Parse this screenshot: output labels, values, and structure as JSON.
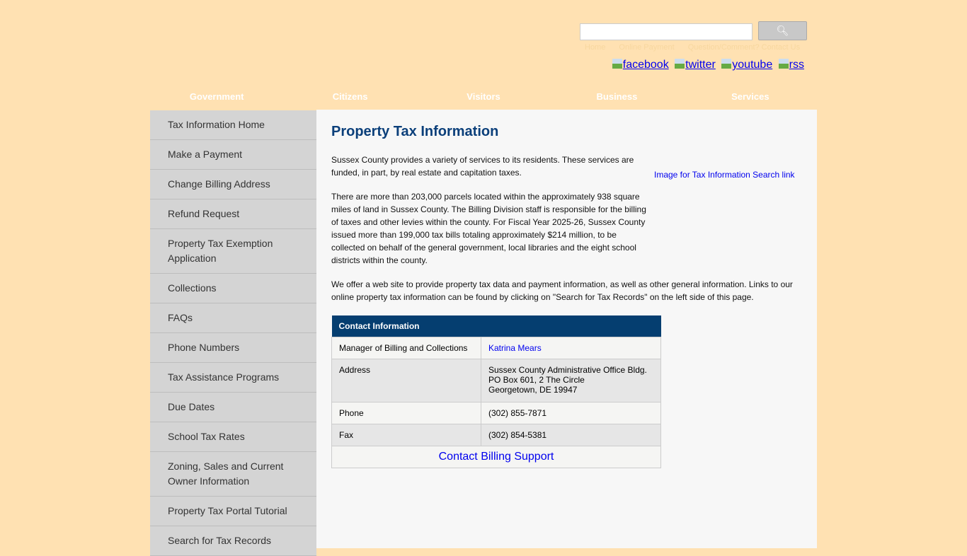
{
  "header": {
    "search_placeholder": "",
    "toplinks": [
      "Home",
      "Online Payment",
      "Question/Comment? Contact Us"
    ],
    "social": [
      "facebook",
      "twitter",
      "youtube",
      "rss"
    ]
  },
  "nav": [
    "Government",
    "Citizens",
    "Visitors",
    "Business",
    "Services"
  ],
  "sidebar": [
    "Tax Information Home",
    "Make a Payment",
    "Change Billing Address",
    "Refund Request",
    "Property Tax Exemption Application",
    "Collections",
    "FAQs",
    "Phone Numbers",
    "Tax Assistance Programs",
    "Due Dates",
    "School Tax Rates",
    "Zoning, Sales and Current Owner Information",
    "Property Tax Portal Tutorial",
    "Search for Tax Records"
  ],
  "main": {
    "title": "Property Tax Information",
    "p1": "Sussex County provides a variety of services to its residents. These services are funded, in part, by real estate and capitation taxes.",
    "p2": "There are more than 203,000 parcels located within the approximately 938 square miles of land in Sussex County. The Billing Division staff is responsible for the billing of taxes and other levies within the county. For Fiscal Year 2025-26, Sussex County issued more than 199,000 tax bills totaling approximately $214 million, to be collected on behalf of the general government, local libraries and the eight school districts within the county.",
    "p3": "We offer a web site to provide property tax data and payment information, as well as other general information. Links to our online property tax information can be found by clicking on \"Search for Tax Records\" on the left side of this page.",
    "image_alt": "Image for Tax Information Search link"
  },
  "contact": {
    "header": "Contact Information",
    "rows": [
      {
        "label": "Manager of Billing and Collections",
        "value": "Katrina Mears"
      },
      {
        "label": "Address",
        "value": "Sussex County Administrative Office Bldg.\nPO Box 601, 2 The Circle\nGeorgetown, DE 19947"
      },
      {
        "label": "Phone",
        "value": "(302) 855-7871"
      },
      {
        "label": "Fax",
        "value": "(302) 854-5381"
      }
    ],
    "footer_link": "Contact Billing Support"
  }
}
